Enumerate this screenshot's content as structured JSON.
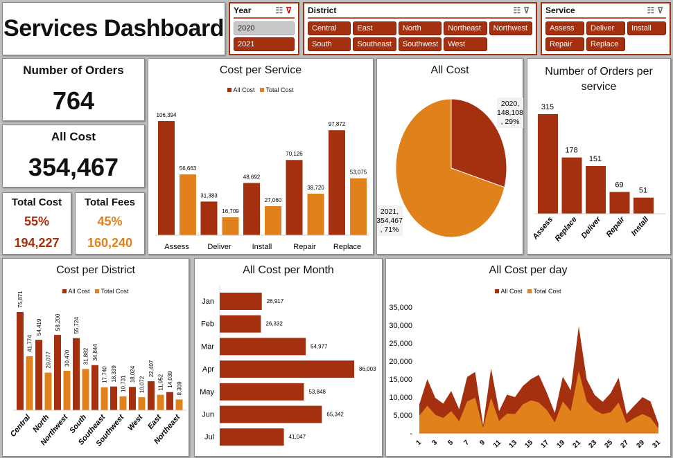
{
  "title": "Services Dashboard",
  "colors": {
    "all_cost": "#a5300f",
    "total_cost": "#e0811b",
    "selected_slicer": "#a5300f",
    "unselected_slicer": "#c8c8c8"
  },
  "slicers": {
    "year": {
      "label": "Year",
      "items": [
        {
          "label": "2020",
          "selected": false
        },
        {
          "label": "2021",
          "selected": true
        }
      ]
    },
    "district": {
      "label": "District",
      "items": [
        {
          "label": "Central"
        },
        {
          "label": "East"
        },
        {
          "label": "North"
        },
        {
          "label": "Northeast"
        },
        {
          "label": "Northwest"
        },
        {
          "label": "South"
        },
        {
          "label": "Southeast"
        },
        {
          "label": "Southwest"
        },
        {
          "label": "West"
        }
      ]
    },
    "service": {
      "label": "Service",
      "items": [
        {
          "label": "Assess"
        },
        {
          "label": "Deliver"
        },
        {
          "label": "Install"
        },
        {
          "label": "Repair"
        },
        {
          "label": "Replace"
        }
      ]
    },
    "icons": [
      "multi-select-icon",
      "clear-filter-icon"
    ]
  },
  "kpis": {
    "orders": {
      "label": "Number of Orders",
      "value": "764"
    },
    "all_cost": {
      "label": "All Cost",
      "value": "354,467"
    },
    "total_cost": {
      "label": "Total Cost",
      "pct": "55%",
      "value": "194,227"
    },
    "total_fees": {
      "label": "Total Fees",
      "pct": "45%",
      "value": "160,240"
    }
  },
  "chart_data": [
    {
      "id": "service",
      "type": "bar",
      "title": "Cost per Service",
      "legend": [
        "All Cost",
        "Total Cost"
      ],
      "categories": [
        "Assess",
        "Deliver",
        "Install",
        "Repair",
        "Replace"
      ],
      "series": [
        {
          "name": "All Cost",
          "values": [
            106394,
            31383,
            48692,
            70126,
            97872
          ],
          "labels": [
            "106,394",
            "31,383",
            "48,692",
            "70,126",
            "97,872"
          ]
        },
        {
          "name": "Total Cost",
          "values": [
            56663,
            16709,
            27060,
            38720,
            53075
          ],
          "labels": [
            "56,663",
            "16,709",
            "27,060",
            "38,720",
            "53,075"
          ]
        }
      ]
    },
    {
      "id": "pie",
      "type": "pie",
      "title": "All Cost",
      "slices": [
        {
          "name": "2020",
          "value": 148108,
          "pct": 29,
          "label": [
            "2020,",
            "148,108",
            ", 29%"
          ]
        },
        {
          "name": "2021",
          "value": 354467,
          "pct": 71,
          "label": [
            "2021,",
            "354,467",
            ", 71%"
          ]
        }
      ]
    },
    {
      "id": "orders",
      "type": "bar",
      "title": "Number of Orders per service",
      "categories": [
        "Assess",
        "Replace",
        "Deliver",
        "Repair",
        "Install"
      ],
      "values": [
        315,
        178,
        151,
        69,
        51
      ]
    },
    {
      "id": "district",
      "type": "bar",
      "title": "Cost per District",
      "legend": [
        "All Cost",
        "Total Cost"
      ],
      "categories": [
        "Central",
        "North",
        "Northwest",
        "South",
        "Southeast",
        "Southwest",
        "West",
        "East",
        "Northeast"
      ],
      "series": [
        {
          "name": "All Cost",
          "values": [
            75871,
            54419,
            58200,
            55724,
            34844,
            18339,
            18024,
            22407,
            14039
          ],
          "labels": [
            "75,871",
            "54,419",
            "58,200",
            "55,724",
            "34,844",
            "18,339",
            "18,024",
            "22,407",
            "14,039"
          ]
        },
        {
          "name": "Total Cost",
          "values": [
            41774,
            29077,
            30470,
            31882,
            17740,
            10731,
            10072,
            11952,
            8309
          ],
          "labels": [
            "41,774",
            "29,077",
            "30,470",
            "31,882",
            "17,740",
            "10,731",
            "10,072",
            "11,952",
            "8,309"
          ]
        }
      ]
    },
    {
      "id": "month",
      "type": "bar",
      "orientation": "horizontal",
      "title": "All Cost per Month",
      "categories": [
        "Jan",
        "Feb",
        "Mar",
        "Apr",
        "May",
        "Jun",
        "Jul"
      ],
      "values": [
        26917,
        26332,
        54977,
        86003,
        53848,
        65342,
        41047
      ],
      "labels": [
        "26,917",
        "26,332",
        "54,977",
        "86,003",
        "53,848",
        "65,342",
        "41,047"
      ]
    },
    {
      "id": "day",
      "type": "area",
      "title": "All Cost per day",
      "legend": [
        "All Cost",
        "Total Cost"
      ],
      "x": [
        1,
        2,
        3,
        4,
        5,
        6,
        7,
        8,
        9,
        10,
        11,
        12,
        13,
        14,
        15,
        16,
        17,
        18,
        19,
        20,
        21,
        22,
        23,
        24,
        25,
        26,
        27,
        28,
        29,
        30,
        31
      ],
      "xticks": [
        "1",
        "3",
        "5",
        "7",
        "9",
        "11",
        "13",
        "15",
        "17",
        "19",
        "21",
        "23",
        "25",
        "27",
        "29",
        "31"
      ],
      "yticks": [
        "-",
        "5,000",
        "10,000",
        "15,000",
        "20,000",
        "25,000",
        "30,000",
        "35,000"
      ],
      "ylim": [
        0,
        35000
      ],
      "series": [
        {
          "name": "All Cost",
          "values": [
            8000,
            15000,
            9800,
            8200,
            11700,
            6600,
            15600,
            17000,
            2200,
            18000,
            6100,
            10700,
            10000,
            13100,
            15000,
            16200,
            11200,
            5600,
            15700,
            11900,
            29700,
            14900,
            10600,
            8700,
            11100,
            15400,
            5300,
            7700,
            10000,
            8800,
            2600
          ]
        },
        {
          "name": "Total Cost",
          "values": [
            4800,
            7600,
            5100,
            4200,
            6100,
            3300,
            8800,
            9800,
            1500,
            9800,
            3400,
            5400,
            5300,
            8000,
            9100,
            8500,
            6400,
            3000,
            8800,
            6100,
            17300,
            8800,
            6400,
            5300,
            5800,
            8500,
            2800,
            4200,
            5300,
            4300,
            1300
          ]
        }
      ]
    }
  ]
}
